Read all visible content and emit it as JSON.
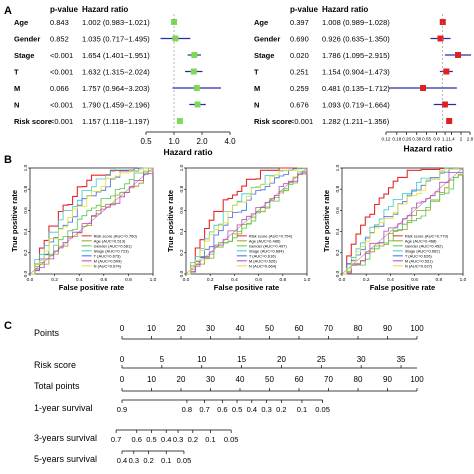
{
  "panel_labels": {
    "a": "A",
    "b": "B",
    "c": "C"
  },
  "forest_headers": {
    "pvalue": "p-value",
    "hr": "Hazard ratio"
  },
  "chart_data": [
    {
      "type": "scatter",
      "subtype": "forest",
      "panel": "A-left",
      "marker_color": "#7ed957",
      "xlabel": "Hazard ratio",
      "xlim": [
        0.5,
        4.0
      ],
      "xscale": "log",
      "ticks": [
        "0.5",
        "1.0",
        "2.0",
        "4.0"
      ],
      "tick_values": [
        0.5,
        1.0,
        2.0,
        4.0
      ],
      "rows": [
        {
          "label": "Age",
          "p": "0.843",
          "hr_text": "1.002 (0.983−1.021)",
          "hr": 1.002,
          "lo": 0.983,
          "hi": 1.021
        },
        {
          "label": "Gender",
          "p": "0.852",
          "hr_text": "1.035 (0.717−1.495)",
          "hr": 1.035,
          "lo": 0.717,
          "hi": 1.495
        },
        {
          "label": "Stage",
          "p": "<0.001",
          "hr_text": "1.654 (1.401−1.951)",
          "hr": 1.654,
          "lo": 1.401,
          "hi": 1.951
        },
        {
          "label": "T",
          "p": "<0.001",
          "hr_text": "1.632 (1.315−2.024)",
          "hr": 1.632,
          "lo": 1.315,
          "hi": 2.024
        },
        {
          "label": "M",
          "p": "0.066",
          "hr_text": "1.757 (0.964−3.203)",
          "hr": 1.757,
          "lo": 0.964,
          "hi": 3.203
        },
        {
          "label": "N",
          "p": "<0.001",
          "hr_text": "1.790 (1.459−2.196)",
          "hr": 1.79,
          "lo": 1.459,
          "hi": 2.196
        },
        {
          "label": "Risk score",
          "p": "<0.001",
          "hr_text": "1.157 (1.118−1.197)",
          "hr": 1.157,
          "lo": 1.118,
          "hi": 1.197
        }
      ]
    },
    {
      "type": "scatter",
      "subtype": "forest",
      "panel": "A-right",
      "marker_color": "#e02020",
      "xlabel": "Hazard ratio",
      "xlim": [
        0.12,
        2.8
      ],
      "xscale": "log",
      "ticks": [
        "0.12",
        "0.18",
        "0.26",
        "0.38",
        "0.55",
        "0.8",
        "1.1",
        "1.4",
        "2",
        "2.8"
      ],
      "tick_values": [
        0.12,
        0.18,
        0.26,
        0.38,
        0.55,
        0.8,
        1.1,
        1.4,
        2.0,
        2.8
      ],
      "rows": [
        {
          "label": "Age",
          "p": "0.397",
          "hr_text": "1.008 (0.989−1.028)",
          "hr": 1.008,
          "lo": 0.989,
          "hi": 1.028
        },
        {
          "label": "Gender",
          "p": "0.690",
          "hr_text": "0.926 (0.635−1.350)",
          "hr": 0.926,
          "lo": 0.635,
          "hi": 1.35
        },
        {
          "label": "Stage",
          "p": "0.020",
          "hr_text": "1.786 (1.095−2.915)",
          "hr": 1.786,
          "lo": 1.095,
          "hi": 2.915
        },
        {
          "label": "T",
          "p": "0.251",
          "hr_text": "1.154 (0.904−1.473)",
          "hr": 1.154,
          "lo": 0.904,
          "hi": 1.473
        },
        {
          "label": "M",
          "p": "0.259",
          "hr_text": "0.481 (0.135−1.712)",
          "hr": 0.481,
          "lo": 0.135,
          "hi": 1.712
        },
        {
          "label": "N",
          "p": "0.676",
          "hr_text": "1.093 (0.719−1.664)",
          "hr": 1.093,
          "lo": 0.719,
          "hi": 1.664
        },
        {
          "label": "Risk score",
          "p": "<0.001",
          "hr_text": "1.282 (1.211−1.356)",
          "hr": 1.282,
          "lo": 1.211,
          "hi": 1.356
        }
      ]
    },
    {
      "type": "line",
      "subtype": "roc",
      "panel": "B-1",
      "xlabel": "False positive rate",
      "ylabel": "True positive rate",
      "xlim": [
        0,
        1
      ],
      "ylim": [
        0,
        1
      ],
      "ticks": [
        "0.0",
        "0.2",
        "0.4",
        "0.6",
        "0.8",
        "1.0"
      ],
      "legend_position": "bottom-right",
      "series": [
        {
          "name": "Risk score (AUC=0.760)",
          "color": "#e8282b",
          "auc": 0.76
        },
        {
          "name": "Age (AUC=0.513)",
          "color": "#9c9c18",
          "auc": 0.513
        },
        {
          "name": "Gender (AUC=0.581)",
          "color": "#4cc94c",
          "auc": 0.581
        },
        {
          "name": "Stage (AUC=0.723)",
          "color": "#3cc8c8",
          "auc": 0.723
        },
        {
          "name": "T (AUC=0.673)",
          "color": "#4169e1",
          "auc": 0.673
        },
        {
          "name": "M (AUC=0.509)",
          "color": "#c040c0",
          "auc": 0.509
        },
        {
          "name": "N (AUC=0.674)",
          "color": "#e0e030",
          "auc": 0.674
        }
      ]
    },
    {
      "type": "line",
      "subtype": "roc",
      "panel": "B-2",
      "xlabel": "False positive rate",
      "ylabel": "True positive rate",
      "xlim": [
        0,
        1
      ],
      "ylim": [
        0,
        1
      ],
      "ticks": [
        "0.0",
        "0.2",
        "0.4",
        "0.6",
        "0.8",
        "1.0"
      ],
      "legend_position": "bottom-right",
      "series": [
        {
          "name": "Risk score (AUC=0.754)",
          "color": "#e8282b",
          "auc": 0.754
        },
        {
          "name": "Age (AUC=0.486)",
          "color": "#9c9c18",
          "auc": 0.486
        },
        {
          "name": "Gender (AUC=0.497)",
          "color": "#4cc94c",
          "auc": 0.497
        },
        {
          "name": "Stage (AUC=0.684)",
          "color": "#3cc8c8",
          "auc": 0.684
        },
        {
          "name": "T (AUC=0.616)",
          "color": "#4169e1",
          "auc": 0.616
        },
        {
          "name": "M (AUC=0.526)",
          "color": "#c040c0",
          "auc": 0.526
        },
        {
          "name": "N (AUC=0.664)",
          "color": "#e0e030",
          "auc": 0.664
        }
      ]
    },
    {
      "type": "line",
      "subtype": "roc",
      "panel": "B-3",
      "xlabel": "False positive rate",
      "ylabel": "True positive rate",
      "xlim": [
        0,
        1
      ],
      "ylim": [
        0,
        1
      ],
      "ticks": [
        "0.0",
        "0.2",
        "0.4",
        "0.6",
        "0.8",
        "1.0"
      ],
      "legend_position": "bottom-right",
      "series": [
        {
          "name": "Risk score (AUC=0.779)",
          "color": "#e8282b",
          "auc": 0.779
        },
        {
          "name": "Age (AUC=0.468)",
          "color": "#9c9c18",
          "auc": 0.468
        },
        {
          "name": "Gender (AUC=0.452)",
          "color": "#4cc94c",
          "auc": 0.452
        },
        {
          "name": "Stage (AUC=0.662)",
          "color": "#3cc8c8",
          "auc": 0.662
        },
        {
          "name": "T (AUC=0.626)",
          "color": "#4169e1",
          "auc": 0.626
        },
        {
          "name": "M (AUC=0.531)",
          "color": "#c040c0",
          "auc": 0.531
        },
        {
          "name": "N (AUC=0.627)",
          "color": "#e0e030",
          "auc": 0.627
        }
      ]
    },
    {
      "type": "table",
      "subtype": "nomogram",
      "panel": "C",
      "rows": [
        {
          "label": "Points",
          "ticks": [
            "0",
            "10",
            "20",
            "30",
            "40",
            "50",
            "60",
            "70",
            "80",
            "90",
            "100"
          ],
          "values": [
            0,
            10,
            20,
            30,
            40,
            50,
            60,
            70,
            80,
            90,
            100
          ],
          "axis_range": [
            0,
            100
          ]
        },
        {
          "label": "Risk score",
          "ticks": [
            "0",
            "5",
            "10",
            "15",
            "20",
            "25",
            "30",
            "35"
          ],
          "values": [
            0,
            5,
            10,
            15,
            20,
            25,
            30,
            35
          ],
          "axis_range": [
            0,
            37
          ]
        },
        {
          "label": "Total points",
          "ticks": [
            "0",
            "10",
            "20",
            "30",
            "40",
            "50",
            "60",
            "70",
            "80",
            "90",
            "100"
          ],
          "values": [
            0,
            10,
            20,
            30,
            40,
            50,
            60,
            70,
            80,
            90,
            100
          ],
          "axis_range": [
            0,
            100
          ]
        },
        {
          "label": "1-year survival",
          "ticks": [
            "0.9",
            "0.8",
            "0.7",
            "0.6",
            "0.5",
            "0.4",
            "0.3",
            "0.2",
            "0.1",
            "0.05"
          ],
          "values": [
            0,
            22,
            28,
            34,
            39,
            44,
            49,
            54,
            61,
            68
          ],
          "axis_range": [
            0,
            100
          ]
        },
        {
          "label": "3-years survival",
          "ticks": [
            "0.7",
            "0.6",
            "0.5",
            "0.4",
            "0.3",
            "0.2",
            "0.1",
            "0.05"
          ],
          "values": [
            -2,
            5,
            10,
            15,
            19,
            24,
            30,
            37
          ],
          "axis_range": [
            0,
            100
          ]
        },
        {
          "label": "5-years survival",
          "ticks": [
            "0.4",
            "0.3",
            "0.2",
            "0.1",
            "0.05"
          ],
          "values": [
            0,
            4,
            9,
            15,
            21
          ],
          "axis_range": [
            0,
            100
          ]
        }
      ]
    }
  ]
}
